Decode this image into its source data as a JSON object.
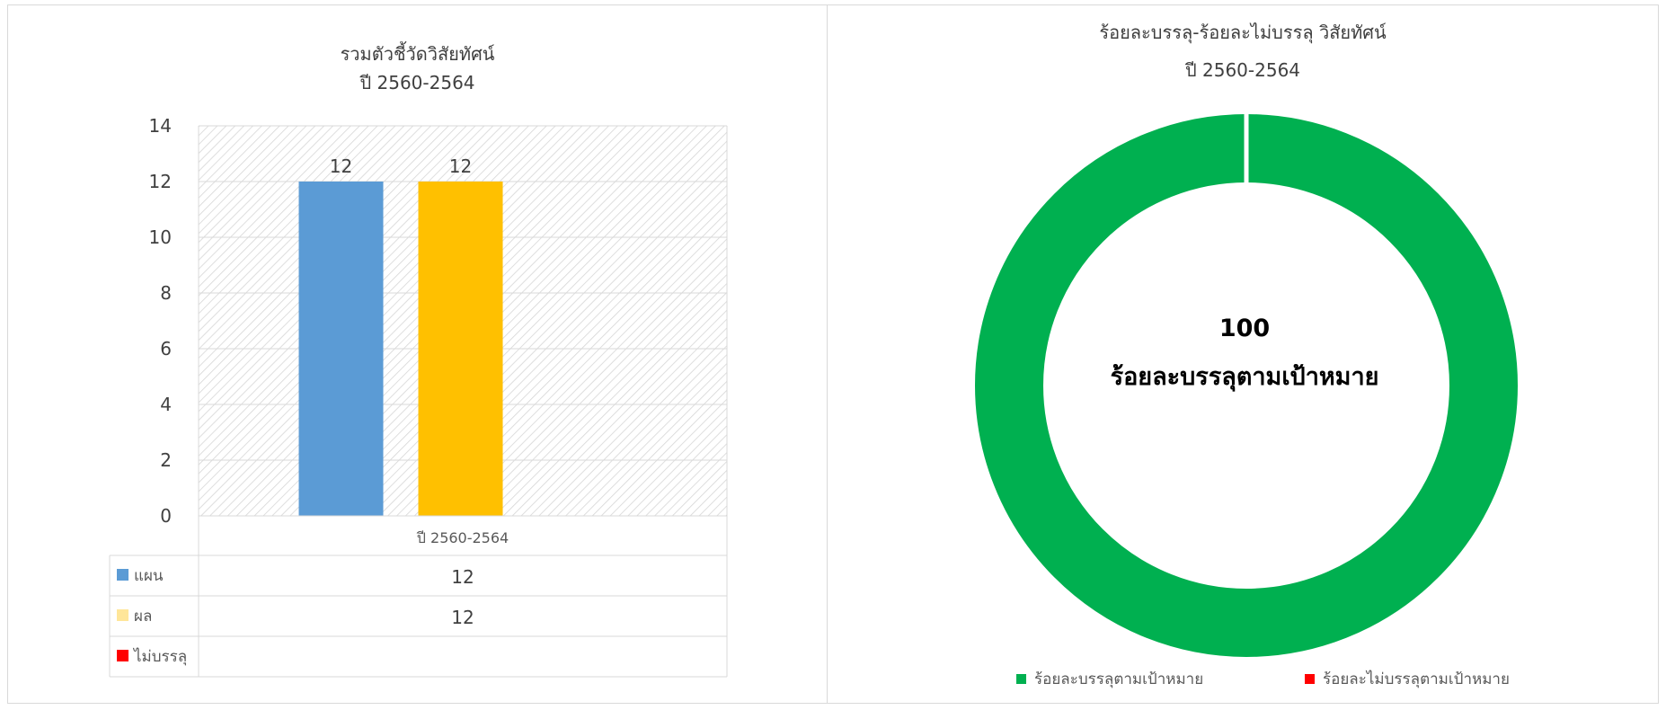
{
  "chart_data": [
    {
      "type": "bar",
      "title": "รวมตัวชี้วัดวิสัยทัศน์",
      "subtitle": "ปี 2560-2564",
      "categories": [
        "ปี 2560-2564"
      ],
      "ylim": [
        0,
        14
      ],
      "yticks": [
        0,
        2,
        4,
        6,
        8,
        10,
        12,
        14
      ],
      "grid": true,
      "series": [
        {
          "name": "แผน",
          "values": [
            12
          ],
          "color": "#5b9bd5"
        },
        {
          "name": "ผล",
          "values": [
            12
          ],
          "color": "#ffc000"
        },
        {
          "name": "ไม่บรรลุ",
          "values": [
            null
          ],
          "color": "#ff0000"
        }
      ],
      "data_table": [
        {
          "name": "แผน",
          "value": "12",
          "swatch": "#5b9bd5"
        },
        {
          "name": "ผล",
          "value": "12",
          "swatch": "#ffe699"
        },
        {
          "name": "ไม่บรรลุ",
          "value": "",
          "swatch": "#ff0000"
        }
      ]
    },
    {
      "type": "pie",
      "donut": true,
      "title": "ร้อยละบรรลุ-ร้อยละไม่บรรลุ วิสัยทัศน์",
      "subtitle": "ปี 2560-2564",
      "slices": [
        {
          "label": "ร้อยละบรรลุตามเป้าหมาย",
          "value": 100,
          "color": "#00b050"
        },
        {
          "label": "ร้อยละไม่บรรลุตามเป้าหมาย",
          "value": 0,
          "color": "#ff0000"
        }
      ],
      "center_value": "100",
      "center_label": "ร้อยละบรรลุตามเป้าหมาย",
      "legend_position": "bottom"
    }
  ]
}
